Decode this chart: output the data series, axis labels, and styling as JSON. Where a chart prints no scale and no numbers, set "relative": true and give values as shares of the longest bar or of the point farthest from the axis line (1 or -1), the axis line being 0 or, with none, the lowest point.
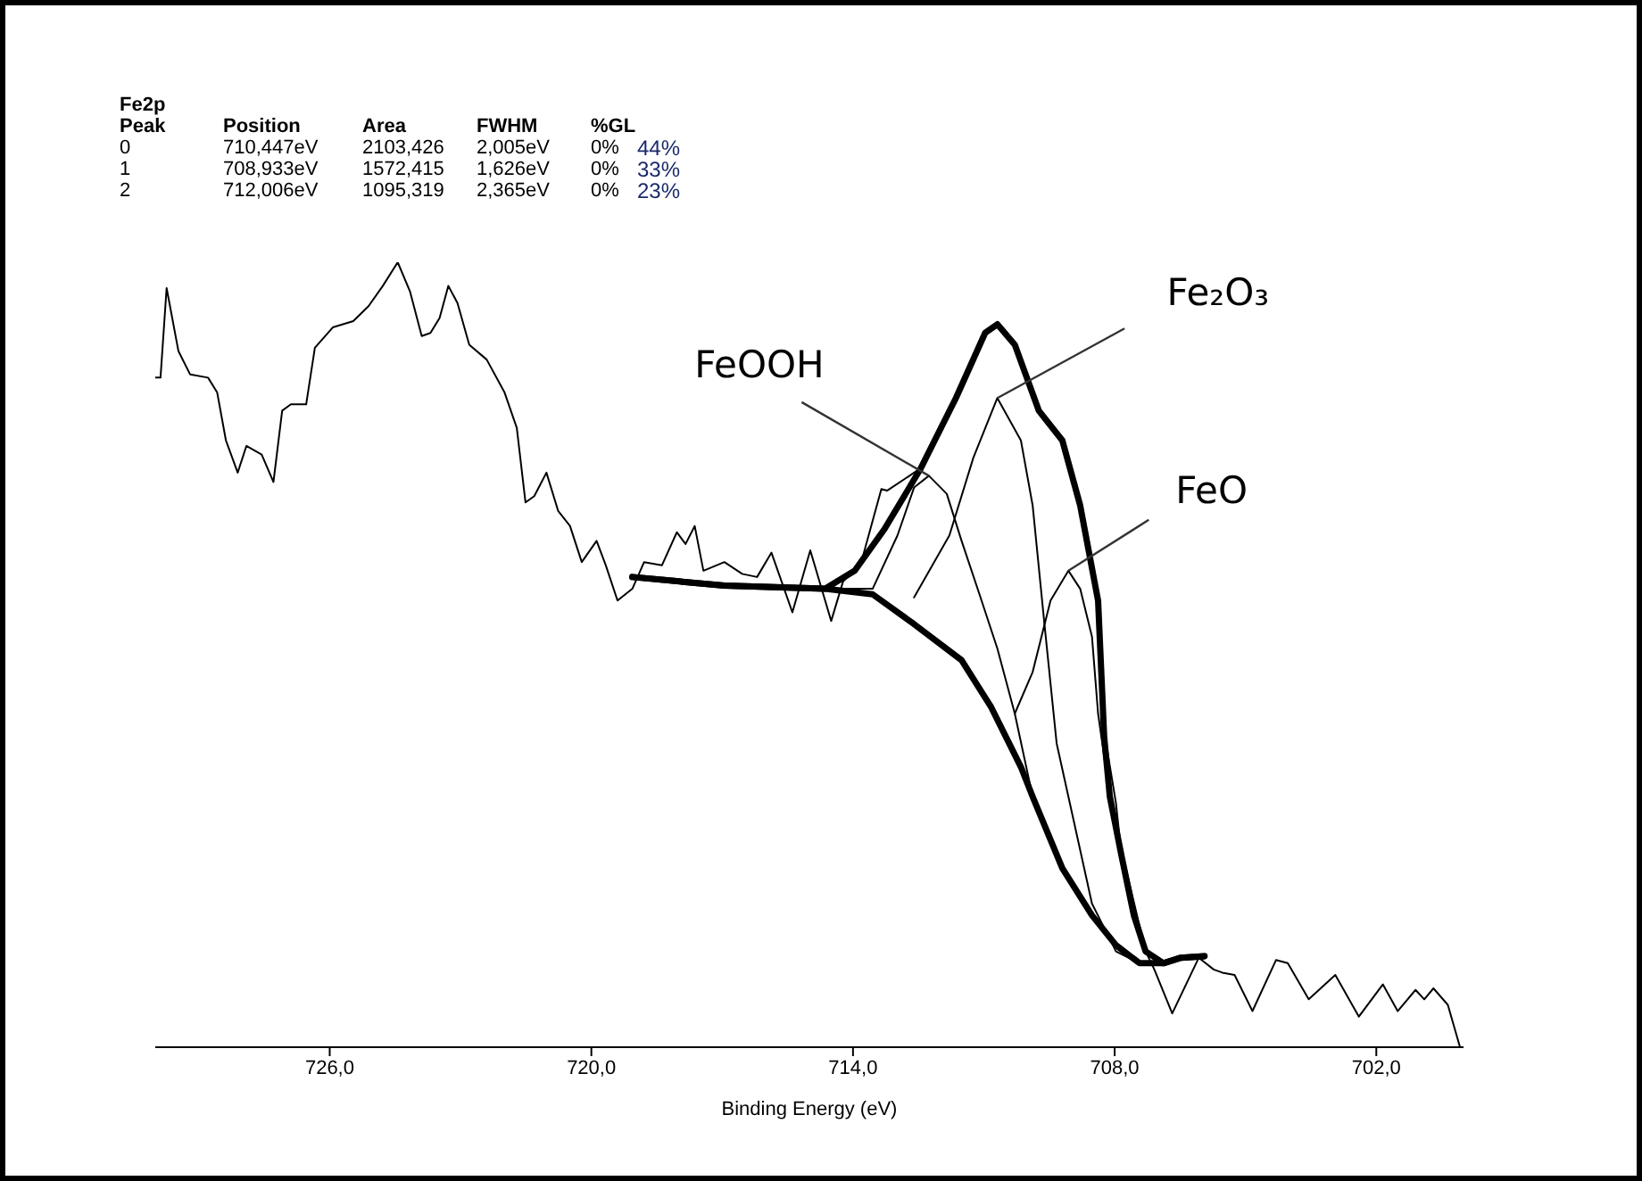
{
  "chart_data": {
    "type": "line",
    "relative": true,
    "marker": "none",
    "line_style": "solid",
    "grid": false,
    "xlabel": "Binding Energy (eV)",
    "xlim": [
      730,
      700
    ],
    "xticks": [
      {
        "value": 726,
        "label": "726,0"
      },
      {
        "value": 720,
        "label": "720,0"
      },
      {
        "value": 714,
        "label": "714,0"
      },
      {
        "value": 708,
        "label": "708,0"
      },
      {
        "value": 702,
        "label": "702,0"
      }
    ],
    "annotations": [
      "Fe2p",
      "Peak  Position  Area  FWHM  %GL",
      "0  710,447eV  2103,426  2,005eV  0%  44%",
      "1  708,933eV  1572,415  1,626eV  0%  33%",
      "2  712,006eV  1095,319  2,365eV  0%  23%",
      {
        "text": "FeOOH",
        "x": 712.26,
        "y": 0.728
      },
      {
        "text": "Fe₂O₃",
        "x": 710.69,
        "y": 0.827
      },
      {
        "text": "FeO",
        "x": 709.06,
        "y": 0.607
      }
    ],
    "series": [
      {
        "color": "#000000",
        "x": [
          730.0,
          729.88,
          729.74,
          729.47,
          729.2,
          728.79,
          728.58,
          728.38,
          728.11,
          727.91,
          727.56,
          727.29,
          727.09,
          726.89,
          726.54,
          726.34,
          725.93,
          725.46,
          725.11,
          724.78,
          724.44,
          724.16,
          723.89,
          723.69,
          723.48,
          723.28,
          723.07,
          722.8,
          722.4,
          721.99,
          721.71,
          721.51,
          721.31,
          721.03,
          720.76,
          720.49,
          720.22,
          719.88,
          719.67,
          719.4,
          719.06,
          718.79,
          718.38,
          718.04,
          717.84,
          717.63,
          717.43,
          716.95,
          716.54,
          716.2,
          715.87,
          715.39,
          714.98,
          714.5,
          714.23,
          713.82,
          713.35,
          713.22,
          712.46,
          711.64,
          710.97,
          710.69,
          710.29,
          709.74,
          709.2,
          708.79,
          708.38,
          708.24,
          707.97,
          707.84,
          707.56,
          707.29,
          707.09,
          706.68,
          706.07,
          705.73,
          705.53,
          705.25,
          704.84,
          704.3,
          704.03,
          703.55,
          702.94,
          702.4,
          701.85,
          701.51,
          701.1,
          700.9,
          700.69,
          700.36,
          700.08
        ],
        "values": [
          0.853,
          0.853,
          0.967,
          0.887,
          0.857,
          0.853,
          0.834,
          0.773,
          0.732,
          0.766,
          0.755,
          0.72,
          0.811,
          0.819,
          0.819,
          0.891,
          0.917,
          0.925,
          0.944,
          0.97,
          1.0,
          0.963,
          0.906,
          0.91,
          0.929,
          0.97,
          0.948,
          0.895,
          0.876,
          0.834,
          0.789,
          0.694,
          0.702,
          0.732,
          0.683,
          0.664,
          0.618,
          0.645,
          0.614,
          0.569,
          0.584,
          0.618,
          0.614,
          0.656,
          0.641,
          0.664,
          0.607,
          0.618,
          0.603,
          0.599,
          0.63,
          0.554,
          0.633,
          0.543,
          0.593,
          0.616,
          0.711,
          0.709,
          0.737,
          0.827,
          0.91,
          0.921,
          0.895,
          0.811,
          0.773,
          0.69,
          0.569,
          0.402,
          0.311,
          0.243,
          0.168,
          0.122,
          0.099,
          0.043,
          0.114,
          0.099,
          0.095,
          0.092,
          0.046,
          0.111,
          0.107,
          0.061,
          0.092,
          0.039,
          0.08,
          0.046,
          0.073,
          0.061,
          0.075,
          0.054,
          0.0
        ]
      },
      {
        "color": "#000000",
        "x": [
          719.06,
          716.95,
          714.64,
          713.96,
          713.28,
          712.46,
          711.64,
          710.97,
          710.69,
          710.29,
          709.74,
          709.2,
          708.79,
          708.38,
          708.24,
          708.11,
          707.84,
          707.56,
          707.29,
          706.88,
          706.48,
          705.94
        ],
        "values": [
          0.599,
          0.588,
          0.584,
          0.607,
          0.66,
          0.736,
          0.827,
          0.91,
          0.921,
          0.895,
          0.811,
          0.773,
          0.69,
          0.569,
          0.395,
          0.319,
          0.243,
          0.168,
          0.122,
          0.107,
          0.114,
          0.116
        ]
      },
      {
        "color": "#000000",
        "x": [
          719.06,
          716.95,
          714.64,
          713.55,
          712.6,
          711.51,
          710.83,
          710.15,
          709.88,
          709.2,
          708.52,
          707.97,
          707.43,
          706.88,
          706.48,
          705.94
        ],
        "values": [
          0.599,
          0.588,
          0.584,
          0.577,
          0.539,
          0.493,
          0.433,
          0.357,
          0.319,
          0.228,
          0.168,
          0.13,
          0.107,
          0.107,
          0.114,
          0.116
        ]
      },
      {
        "color": "#000000",
        "x": [
          714.5,
          713.55,
          712.98,
          712.6,
          712.26,
          711.85,
          711.51,
          711.1,
          710.69,
          710.29,
          709.88,
          709.2
        ],
        "values": [
          0.584,
          0.584,
          0.652,
          0.713,
          0.728,
          0.705,
          0.645,
          0.577,
          0.508,
          0.425,
          0.319,
          0.228
        ]
      },
      {
        "color": "#000000",
        "x": [
          712.6,
          711.79,
          711.24,
          710.69,
          710.15,
          709.88,
          709.61,
          709.33,
          709.06,
          708.52,
          707.97,
          707.43
        ],
        "values": [
          0.573,
          0.652,
          0.751,
          0.827,
          0.773,
          0.69,
          0.539,
          0.387,
          0.319,
          0.183,
          0.122,
          0.107
        ]
      },
      {
        "color": "#000000",
        "x": [
          710.29,
          709.88,
          709.47,
          709.06,
          708.79,
          708.52,
          708.38,
          708.11,
          707.71,
          707.29,
          706.88
        ],
        "values": [
          0.425,
          0.478,
          0.569,
          0.607,
          0.584,
          0.523,
          0.425,
          0.319,
          0.22,
          0.122,
          0.107
        ]
      }
    ]
  }
}
